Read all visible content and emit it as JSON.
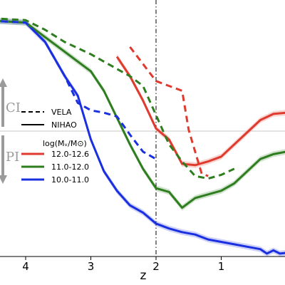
{
  "chart_data": {
    "type": "line",
    "xlabel": "z",
    "ylabel": "",
    "x_axis": {
      "inverted": true,
      "ticks": [
        4,
        3,
        2,
        1
      ]
    },
    "vertical_marker_z": 2,
    "region_labels": [
      "CI",
      "PI"
    ],
    "legend_styles": [
      {
        "label": "VELA",
        "style": "dashed"
      },
      {
        "label": "NIHAO",
        "style": "solid"
      }
    ],
    "legend_mass": {
      "title": "log(Mᵥ/M⊙)",
      "entries": [
        {
          "label": "12.0-12.6",
          "color": "#e03a2f"
        },
        {
          "label": "11.0-12.0",
          "color": "#2e7d1f"
        },
        {
          "label": "10.0-11.0",
          "color": "#1a2fe0"
        }
      ]
    },
    "series": [
      {
        "survey": "NIHAO",
        "mass_bin": "10.0-11.0",
        "color": "#1a2fe0",
        "style": "solid",
        "band": true,
        "points": [
          [
            4.7,
            0.97
          ],
          [
            4.4,
            0.966
          ],
          [
            4.0,
            0.96
          ],
          [
            3.7,
            0.88
          ],
          [
            3.4,
            0.74
          ],
          [
            3.2,
            0.66
          ],
          [
            3.0,
            0.48
          ],
          [
            2.8,
            0.35
          ],
          [
            2.6,
            0.27
          ],
          [
            2.4,
            0.21
          ],
          [
            2.2,
            0.18
          ],
          [
            2.0,
            0.135
          ],
          [
            1.8,
            0.115
          ],
          [
            1.6,
            0.1
          ],
          [
            1.4,
            0.09
          ],
          [
            1.2,
            0.07
          ],
          [
            1.0,
            0.06
          ],
          [
            0.8,
            0.05
          ],
          [
            0.6,
            0.04
          ],
          [
            0.4,
            0.03
          ],
          [
            0.3,
            0.012
          ],
          [
            0.2,
            0.025
          ],
          [
            0.1,
            0.012
          ],
          [
            0.0,
            0.015
          ]
        ]
      },
      {
        "survey": "NIHAO",
        "mass_bin": "11.0-12.0",
        "color": "#2e7d1f",
        "style": "solid",
        "band": true,
        "points": [
          [
            4.7,
            0.97
          ],
          [
            4.4,
            0.966
          ],
          [
            4.0,
            0.96
          ],
          [
            3.7,
            0.9
          ],
          [
            3.4,
            0.84
          ],
          [
            3.2,
            0.8
          ],
          [
            3.0,
            0.76
          ],
          [
            2.8,
            0.68
          ],
          [
            2.6,
            0.57
          ],
          [
            2.4,
            0.46
          ],
          [
            2.2,
            0.36
          ],
          [
            2.0,
            0.28
          ],
          [
            1.8,
            0.265
          ],
          [
            1.6,
            0.2
          ],
          [
            1.4,
            0.24
          ],
          [
            1.2,
            0.255
          ],
          [
            1.0,
            0.27
          ],
          [
            0.8,
            0.3
          ],
          [
            0.6,
            0.35
          ],
          [
            0.4,
            0.4
          ],
          [
            0.2,
            0.42
          ],
          [
            0.0,
            0.43
          ]
        ]
      },
      {
        "survey": "NIHAO",
        "mass_bin": "12.0-12.6",
        "color": "#e03a2f",
        "style": "solid",
        "band": true,
        "points": [
          [
            2.6,
            0.82
          ],
          [
            2.4,
            0.74
          ],
          [
            2.2,
            0.64
          ],
          [
            2.0,
            0.525
          ],
          [
            1.8,
            0.48
          ],
          [
            1.6,
            0.38
          ],
          [
            1.4,
            0.375
          ],
          [
            1.2,
            0.39
          ],
          [
            1.0,
            0.41
          ],
          [
            0.8,
            0.46
          ],
          [
            0.6,
            0.51
          ],
          [
            0.4,
            0.56
          ],
          [
            0.2,
            0.585
          ],
          [
            0.0,
            0.59
          ]
        ]
      },
      {
        "survey": "VELA",
        "mass_bin": "10.0-11.0",
        "color": "#1a2fe0",
        "style": "dashed",
        "band": false,
        "points": [
          [
            4.7,
            0.97
          ],
          [
            4.0,
            0.96
          ],
          [
            3.7,
            0.88
          ],
          [
            3.4,
            0.74
          ],
          [
            3.2,
            0.63
          ],
          [
            3.0,
            0.6
          ],
          [
            2.8,
            0.59
          ],
          [
            2.6,
            0.575
          ],
          [
            2.4,
            0.5
          ],
          [
            2.2,
            0.43
          ],
          [
            2.0,
            0.4
          ]
        ]
      },
      {
        "survey": "VELA",
        "mass_bin": "11.0-12.0",
        "color": "#2e7d1f",
        "style": "dashed",
        "band": false,
        "points": [
          [
            4.7,
            0.98
          ],
          [
            4.4,
            0.976
          ],
          [
            4.0,
            0.97
          ],
          [
            3.7,
            0.93
          ],
          [
            3.4,
            0.88
          ],
          [
            3.0,
            0.83
          ],
          [
            2.8,
            0.8
          ],
          [
            2.6,
            0.77
          ],
          [
            2.4,
            0.74
          ],
          [
            2.2,
            0.7
          ],
          [
            2.0,
            0.58
          ],
          [
            1.8,
            0.46
          ],
          [
            1.6,
            0.39
          ],
          [
            1.4,
            0.33
          ],
          [
            1.2,
            0.32
          ],
          [
            1.0,
            0.335
          ],
          [
            0.8,
            0.36
          ]
        ]
      },
      {
        "survey": "VELA",
        "mass_bin": "12.0-12.6",
        "color": "#e03a2f",
        "style": "dashed",
        "band": false,
        "points": [
          [
            2.4,
            0.86
          ],
          [
            2.2,
            0.79
          ],
          [
            2.0,
            0.72
          ],
          [
            1.8,
            0.7
          ],
          [
            1.6,
            0.68
          ],
          [
            1.5,
            0.52
          ],
          [
            1.4,
            0.43
          ],
          [
            1.3,
            0.34
          ],
          [
            1.2,
            0.33
          ]
        ]
      }
    ]
  }
}
